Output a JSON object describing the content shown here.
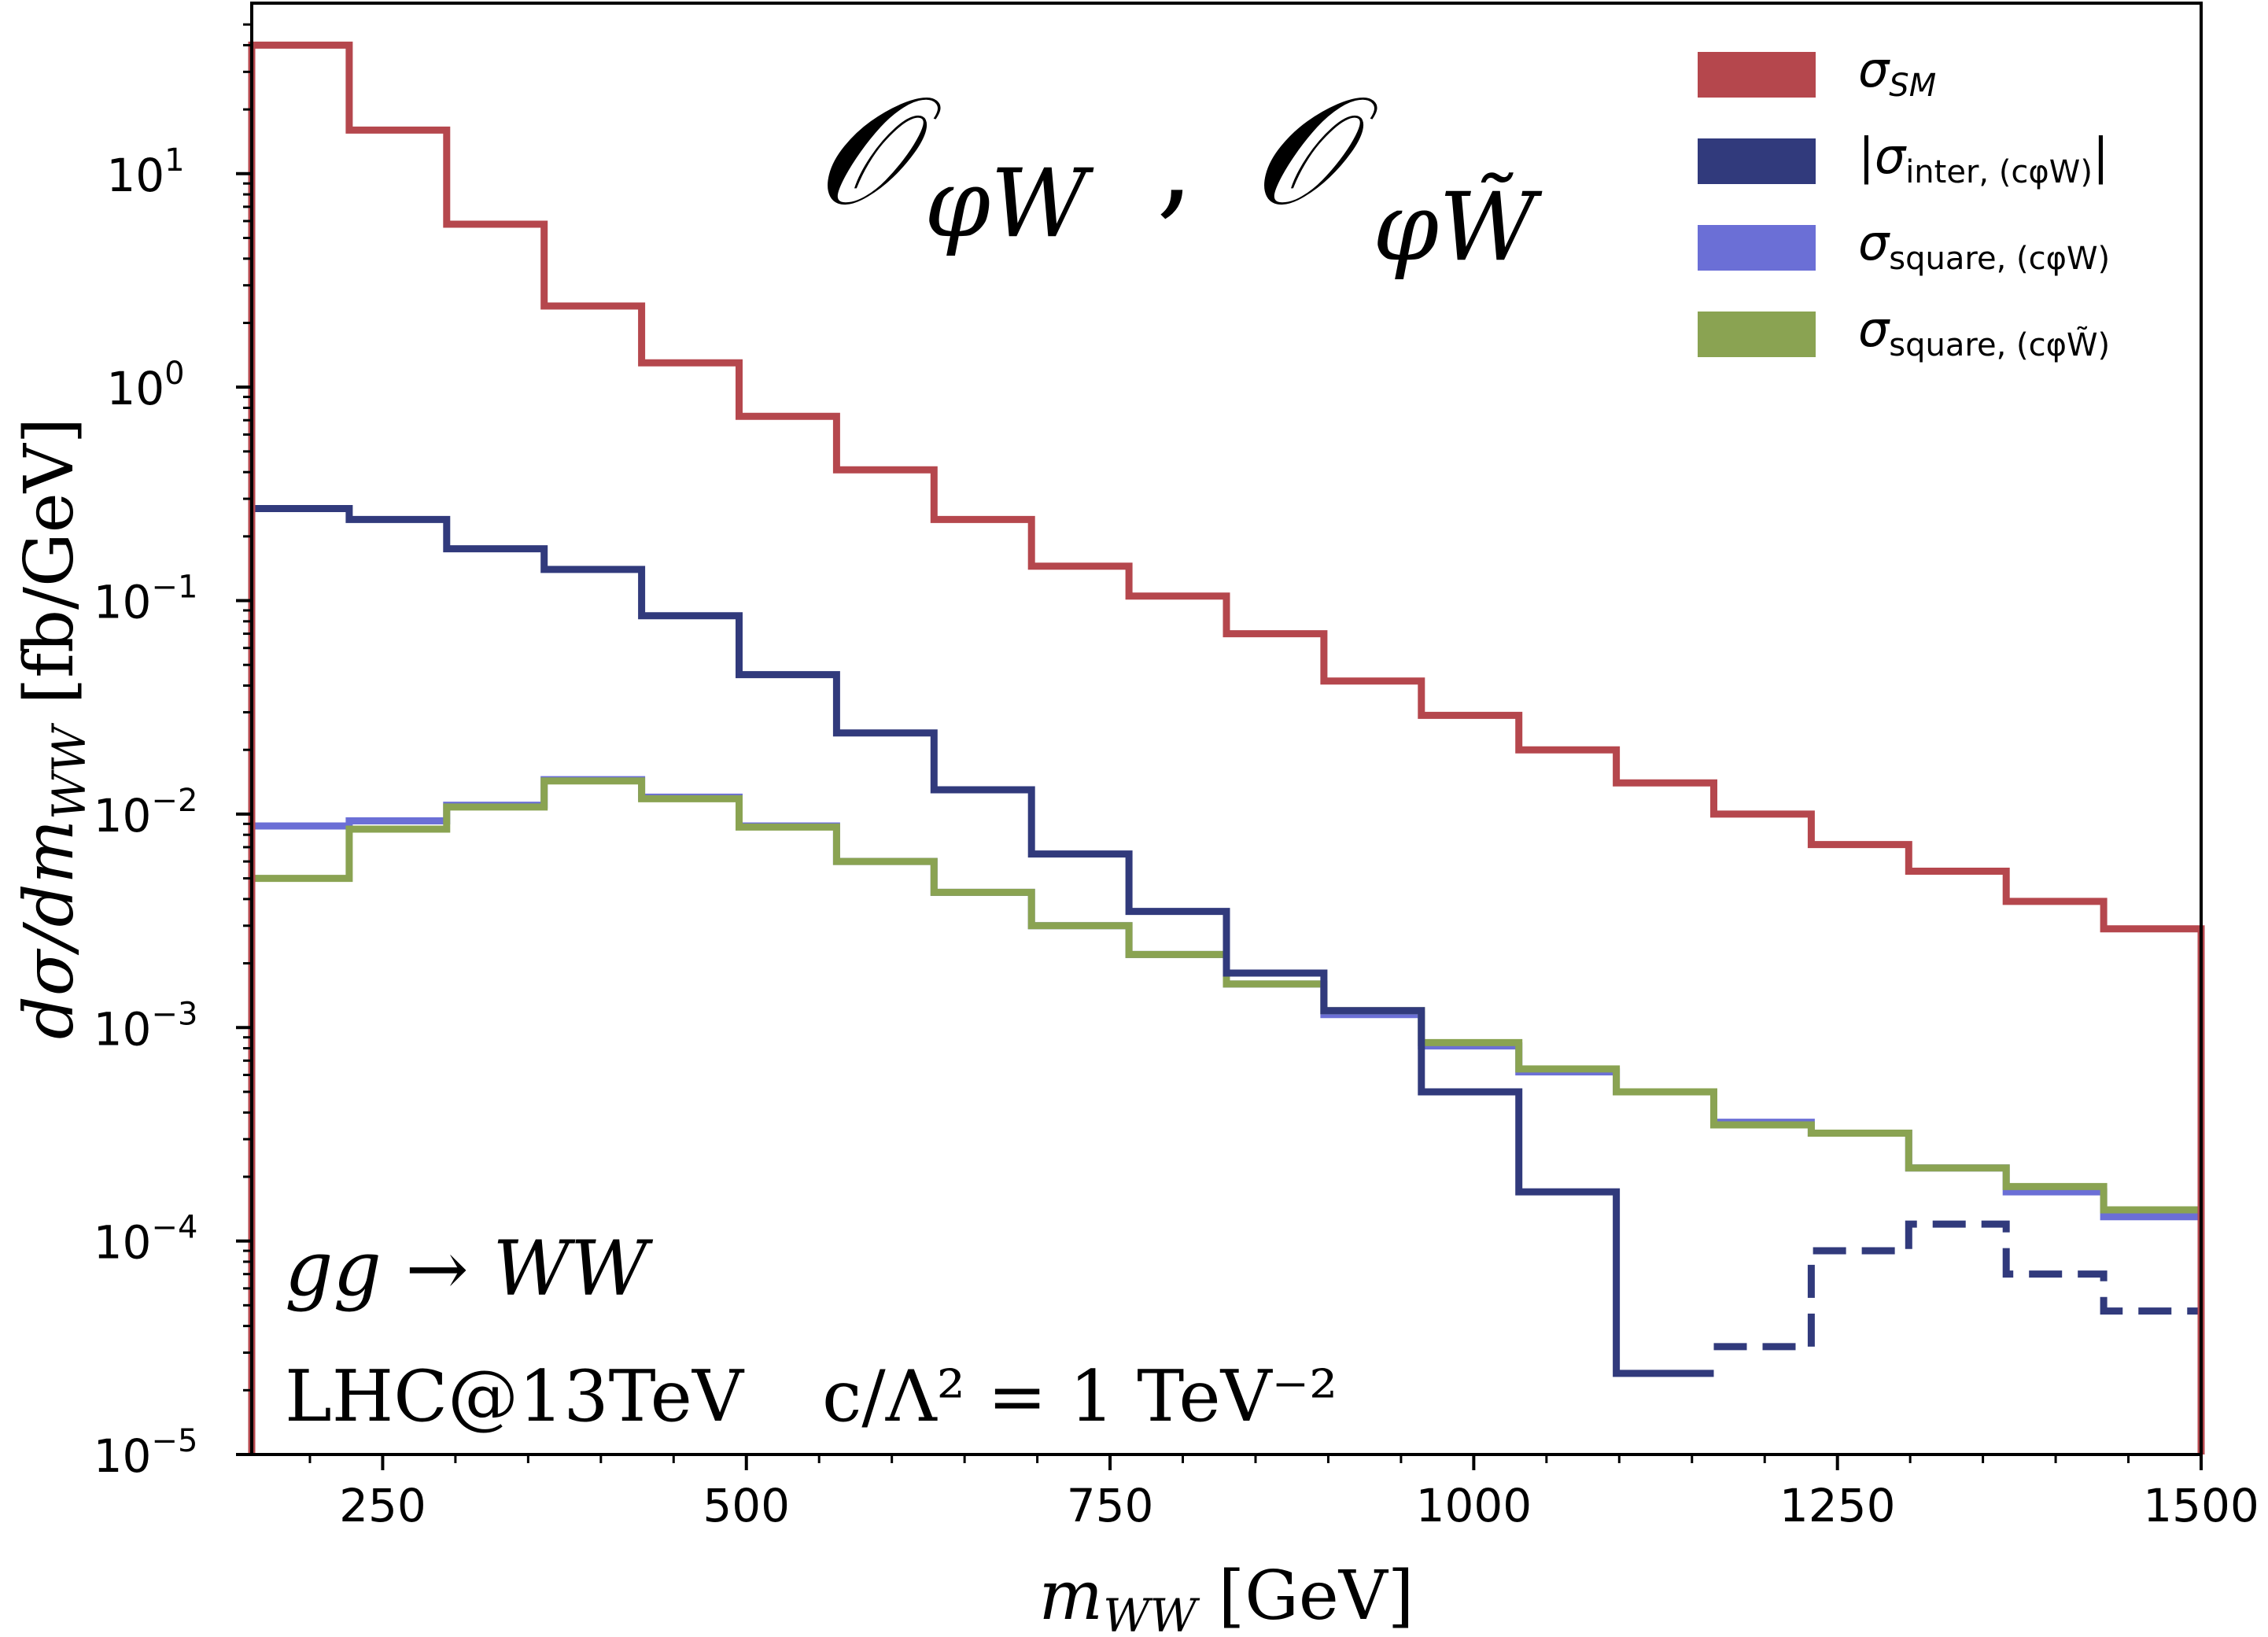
{
  "chart_data": {
    "type": "line",
    "style": "step-histogram",
    "title": "O_{φW} , O_{φW̃}",
    "xlabel": "m_WW [GeV]",
    "ylabel": "dσ/dm_WW [fb/GeV]",
    "xlim": [
      160,
      1500
    ],
    "ylim": [
      1e-05,
      50
    ],
    "yscale": "log",
    "grid": false,
    "legend_position": "top-right",
    "x_ticks": [
      250,
      500,
      750,
      1000,
      1250,
      1500
    ],
    "x_tick_labels": [
      "250",
      "500",
      "750",
      "1000",
      "1250",
      "1500"
    ],
    "y_ticks": [
      10,
      1,
      0.1,
      0.01,
      0.001,
      0.0001,
      1e-05
    ],
    "y_tick_bases": [
      "10",
      "10",
      "10",
      "10",
      "10",
      "10",
      "10"
    ],
    "y_tick_exps": [
      "1",
      "0",
      "−1",
      "−2",
      "−3",
      "−4",
      "−5"
    ],
    "bin_edges": [
      160,
      227,
      294,
      361,
      428,
      495,
      562,
      629,
      696,
      763,
      830,
      897,
      964,
      1031,
      1098,
      1165,
      1232,
      1299,
      1366,
      1433,
      1500
    ],
    "series": [
      {
        "name": "σ_SM",
        "color": "#b5474d",
        "values": [
          40,
          16,
          5.8,
          2.4,
          1.3,
          0.73,
          0.41,
          0.24,
          0.145,
          0.105,
          0.07,
          0.042,
          0.029,
          0.02,
          0.014,
          0.01,
          0.0072,
          0.0054,
          0.0039,
          0.0029
        ]
      },
      {
        "name": "|σ_inter,(cφW)|",
        "color": "#313a7c",
        "values": [
          0.27,
          0.24,
          0.175,
          0.14,
          0.085,
          0.045,
          0.024,
          0.013,
          0.0065,
          0.0035,
          0.0018,
          0.0012,
          0.0005,
          0.00017,
          2.4e-05,
          3.2e-05,
          9e-05,
          0.00012,
          7e-05,
          4.7e-05
        ],
        "dashed_from_bin": 15
      },
      {
        "name": "σ_square,(cφW)",
        "color": "#6b6fd6",
        "values": [
          0.0088,
          0.0093,
          0.011,
          0.0145,
          0.012,
          0.0088,
          0.006,
          0.0043,
          0.003,
          0.0022,
          0.0016,
          0.00115,
          0.00082,
          0.00062,
          0.0005,
          0.00036,
          0.00032,
          0.00022,
          0.00017,
          0.00013
        ]
      },
      {
        "name": "σ_square,(cφW̃)",
        "color": "#8aa352",
        "values": [
          0.005,
          0.0085,
          0.0108,
          0.0143,
          0.0118,
          0.0087,
          0.006,
          0.0043,
          0.003,
          0.0022,
          0.0016,
          0.0012,
          0.00085,
          0.00064,
          0.0005,
          0.00035,
          0.00032,
          0.00022,
          0.00018,
          0.00014
        ]
      }
    ],
    "legend": [
      {
        "main": "σ",
        "sub": "SM",
        "prefix": "",
        "suffix": "",
        "color": "#b5474d"
      },
      {
        "main": "σ",
        "sub": "inter, (cφW)",
        "prefix": "|",
        "suffix": "|",
        "color": "#313a7c"
      },
      {
        "main": "σ",
        "sub": "square, (cφW)",
        "prefix": "",
        "suffix": "",
        "color": "#6b6fd6"
      },
      {
        "main": "σ",
        "sub": "square, (cφW̃)",
        "prefix": "",
        "suffix": "",
        "color": "#8aa352"
      }
    ],
    "annotations": {
      "process": "gg → WW",
      "collider": "LHC@13TeV",
      "coupling": "c/Λ² = 1 TeV⁻²"
    }
  }
}
